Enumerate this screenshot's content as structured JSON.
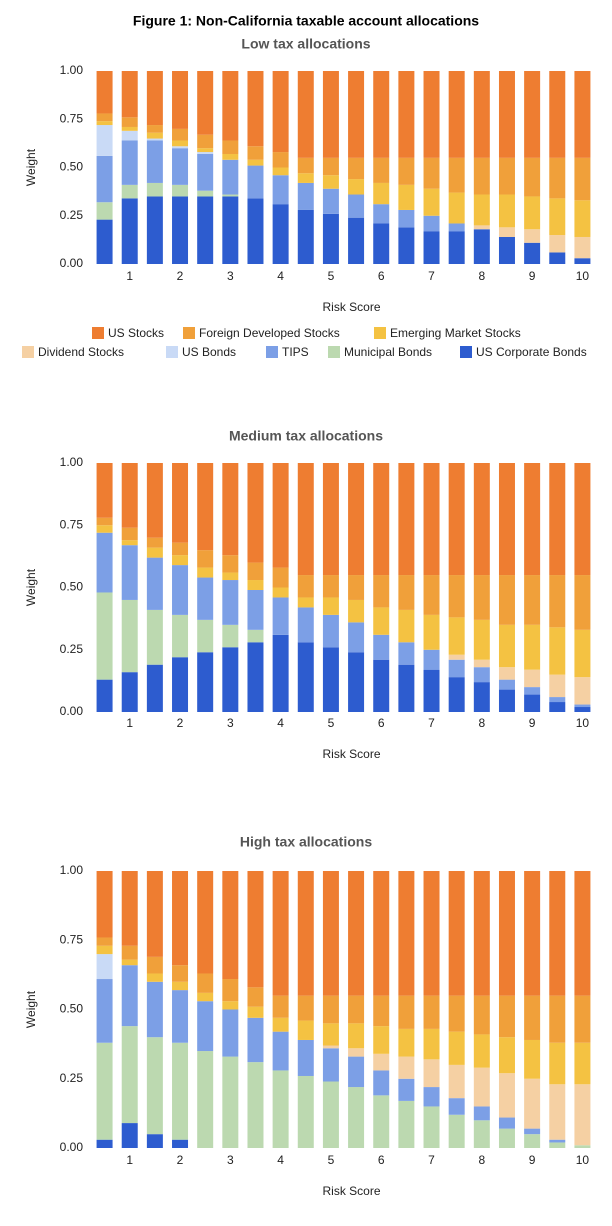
{
  "title": "Figure 1: Non-California taxable account allocations",
  "chart_data": [
    {
      "type": "bar",
      "stacked": true,
      "title": "Low tax allocations",
      "xlabel": "Risk Score",
      "ylabel": "Weight",
      "categories": [
        null,
        "1",
        null,
        "2",
        null,
        "3",
        null,
        "4",
        null,
        "5",
        null,
        "6",
        null,
        "7",
        null,
        "8",
        null,
        "9",
        null,
        "10"
      ],
      "ylim": [
        0,
        1
      ],
      "yticks": [
        {
          "value": 0,
          "label": "0.00"
        },
        {
          "value": 0.25,
          "label": "0.25"
        },
        {
          "value": 0.5,
          "label": "0.50"
        },
        {
          "value": 0.75,
          "label": "0.75"
        },
        {
          "value": 1,
          "label": "1.00"
        }
      ],
      "legend": "bottom",
      "series": [
        {
          "name": "US Corporate Bonds",
          "color": "#2d5ccf",
          "values": [
            0.23,
            0.34,
            0.35,
            0.35,
            0.35,
            0.35,
            0.34,
            0.31,
            0.28,
            0.26,
            0.24,
            0.21,
            0.19,
            0.17,
            0.17,
            0.18,
            0.14,
            0.11,
            0.06,
            0.03
          ]
        },
        {
          "name": "Municipal Bonds",
          "color": "#bcd9b0",
          "values": [
            0.09,
            0.07,
            0.07,
            0.06,
            0.03,
            0.01,
            0,
            0,
            0,
            0,
            0,
            0,
            0,
            0,
            0,
            0,
            0,
            0,
            0,
            0
          ]
        },
        {
          "name": "TIPS",
          "color": "#7c9fe6",
          "values": [
            0.24,
            0.23,
            0.22,
            0.19,
            0.19,
            0.18,
            0.17,
            0.15,
            0.14,
            0.13,
            0.12,
            0.1,
            0.09,
            0.08,
            0.04,
            0,
            0,
            0,
            0,
            0
          ]
        },
        {
          "name": "US Bonds",
          "color": "#c9daf6",
          "values": [
            0.16,
            0.05,
            0.01,
            0.01,
            0.01,
            0,
            0,
            0,
            0,
            0,
            0,
            0,
            0,
            0,
            0,
            0,
            0,
            0,
            0,
            0
          ]
        },
        {
          "name": "Dividend Stocks",
          "color": "#f5d0a3",
          "values": [
            0,
            0,
            0,
            0,
            0,
            0,
            0,
            0,
            0,
            0,
            0,
            0,
            0,
            0,
            0,
            0.02,
            0.05,
            0.07,
            0.09,
            0.11
          ]
        },
        {
          "name": "Emerging Market Stocks",
          "color": "#f4c242",
          "values": [
            0.02,
            0.02,
            0.03,
            0.03,
            0.02,
            0.03,
            0.03,
            0.04,
            0.05,
            0.07,
            0.08,
            0.11,
            0.13,
            0.14,
            0.16,
            0.16,
            0.17,
            0.17,
            0.19,
            0.19
          ]
        },
        {
          "name": "Foreign Developed Stocks",
          "color": "#f0a03a",
          "values": [
            0.04,
            0.05,
            0.04,
            0.06,
            0.07,
            0.07,
            0.07,
            0.08,
            0.08,
            0.09,
            0.11,
            0.13,
            0.14,
            0.16,
            0.18,
            0.19,
            0.19,
            0.2,
            0.21,
            0.22
          ]
        },
        {
          "name": "US Stocks",
          "color": "#ee7d31",
          "values": [
            0.22,
            0.24,
            0.28,
            0.3,
            0.33,
            0.36,
            0.39,
            0.42,
            0.45,
            0.45,
            0.45,
            0.45,
            0.45,
            0.45,
            0.45,
            0.45,
            0.45,
            0.45,
            0.45,
            0.45
          ]
        }
      ]
    },
    {
      "type": "bar",
      "stacked": true,
      "title": "Medium tax allocations",
      "xlabel": "Risk Score",
      "ylabel": "Weight",
      "categories": [
        null,
        "1",
        null,
        "2",
        null,
        "3",
        null,
        "4",
        null,
        "5",
        null,
        "6",
        null,
        "7",
        null,
        "8",
        null,
        "9",
        null,
        "10"
      ],
      "ylim": [
        0,
        1
      ],
      "yticks": [
        {
          "value": 0,
          "label": "0.00"
        },
        {
          "value": 0.25,
          "label": "0.25"
        },
        {
          "value": 0.5,
          "label": "0.50"
        },
        {
          "value": 0.75,
          "label": "0.75"
        },
        {
          "value": 1,
          "label": "1.00"
        }
      ],
      "series": [
        {
          "color": "#2d5ccf",
          "values": [
            0.13,
            0.16,
            0.19,
            0.22,
            0.24,
            0.26,
            0.28,
            0.31,
            0.28,
            0.26,
            0.24,
            0.21,
            0.19,
            0.17,
            0.14,
            0.12,
            0.09,
            0.07,
            0.04,
            0.02
          ]
        },
        {
          "color": "#bcd9b0",
          "values": [
            0.35,
            0.29,
            0.22,
            0.17,
            0.13,
            0.09,
            0.05,
            0,
            0,
            0,
            0,
            0,
            0,
            0,
            0,
            0,
            0,
            0,
            0,
            0
          ]
        },
        {
          "color": "#7c9fe6",
          "values": [
            0.24,
            0.22,
            0.21,
            0.2,
            0.17,
            0.18,
            0.16,
            0.15,
            0.14,
            0.13,
            0.12,
            0.1,
            0.09,
            0.08,
            0.07,
            0.06,
            0.04,
            0.03,
            0.02,
            0.01
          ]
        },
        {
          "color": "#c9daf6",
          "values": [
            0,
            0,
            0,
            0,
            0,
            0,
            0,
            0,
            0,
            0,
            0,
            0,
            0,
            0,
            0,
            0,
            0,
            0,
            0,
            0
          ]
        },
        {
          "color": "#f5d0a3",
          "values": [
            0,
            0,
            0,
            0,
            0,
            0,
            0,
            0,
            0,
            0,
            0,
            0,
            0,
            0,
            0.02,
            0.03,
            0.05,
            0.07,
            0.09,
            0.11
          ]
        },
        {
          "color": "#f4c242",
          "values": [
            0.03,
            0.02,
            0.04,
            0.04,
            0.04,
            0.03,
            0.04,
            0.04,
            0.04,
            0.07,
            0.09,
            0.11,
            0.13,
            0.14,
            0.15,
            0.16,
            0.17,
            0.18,
            0.19,
            0.19
          ]
        },
        {
          "color": "#f0a03a",
          "values": [
            0.03,
            0.05,
            0.04,
            0.05,
            0.07,
            0.07,
            0.07,
            0.08,
            0.09,
            0.09,
            0.1,
            0.13,
            0.14,
            0.16,
            0.17,
            0.18,
            0.2,
            0.2,
            0.21,
            0.22
          ]
        },
        {
          "color": "#ee7d31",
          "values": [
            0.22,
            0.26,
            0.3,
            0.32,
            0.35,
            0.37,
            0.4,
            0.42,
            0.45,
            0.45,
            0.45,
            0.45,
            0.45,
            0.45,
            0.45,
            0.45,
            0.45,
            0.45,
            0.45,
            0.45
          ]
        }
      ]
    },
    {
      "type": "bar",
      "stacked": true,
      "title": "High tax allocations",
      "xlabel": "Risk Score",
      "ylabel": "Weight",
      "categories": [
        null,
        "1",
        null,
        "2",
        null,
        "3",
        null,
        "4",
        null,
        "5",
        null,
        "6",
        null,
        "7",
        null,
        "8",
        null,
        "9",
        null,
        "10"
      ],
      "ylim": [
        0,
        1
      ],
      "yticks": [
        {
          "value": 0,
          "label": "0.00"
        },
        {
          "value": 0.25,
          "label": "0.25"
        },
        {
          "value": 0.5,
          "label": "0.50"
        },
        {
          "value": 0.75,
          "label": "0.75"
        },
        {
          "value": 1,
          "label": "1.00"
        }
      ],
      "series": [
        {
          "color": "#2d5ccf",
          "values": [
            0.03,
            0.09,
            0.05,
            0.03,
            0,
            0,
            0,
            0,
            0,
            0,
            0,
            0,
            0,
            0,
            0,
            0,
            0,
            0,
            0,
            0
          ]
        },
        {
          "color": "#bcd9b0",
          "values": [
            0.35,
            0.35,
            0.35,
            0.35,
            0.35,
            0.33,
            0.31,
            0.28,
            0.26,
            0.24,
            0.22,
            0.19,
            0.17,
            0.15,
            0.12,
            0.1,
            0.07,
            0.05,
            0.02,
            0.01
          ]
        },
        {
          "color": "#7c9fe6",
          "values": [
            0.23,
            0.22,
            0.2,
            0.19,
            0.18,
            0.17,
            0.16,
            0.14,
            0.13,
            0.12,
            0.11,
            0.09,
            0.08,
            0.07,
            0.06,
            0.05,
            0.04,
            0.02,
            0.01,
            0
          ]
        },
        {
          "color": "#c9daf6",
          "values": [
            0.09,
            0,
            0,
            0,
            0,
            0,
            0,
            0,
            0,
            0,
            0,
            0,
            0,
            0,
            0,
            0,
            0,
            0,
            0,
            0
          ]
        },
        {
          "color": "#f5d0a3",
          "values": [
            0,
            0,
            0,
            0,
            0,
            0,
            0,
            0,
            0,
            0.01,
            0.03,
            0.06,
            0.08,
            0.1,
            0.12,
            0.14,
            0.16,
            0.18,
            0.2,
            0.22
          ]
        },
        {
          "color": "#f4c242",
          "values": [
            0.03,
            0.02,
            0.03,
            0.03,
            0.03,
            0.03,
            0.04,
            0.05,
            0.07,
            0.08,
            0.09,
            0.1,
            0.1,
            0.11,
            0.12,
            0.12,
            0.13,
            0.14,
            0.15,
            0.15
          ]
        },
        {
          "color": "#f0a03a",
          "values": [
            0.03,
            0.05,
            0.06,
            0.06,
            0.07,
            0.08,
            0.07,
            0.08,
            0.09,
            0.1,
            0.1,
            0.11,
            0.12,
            0.12,
            0.13,
            0.14,
            0.15,
            0.16,
            0.17,
            0.17
          ]
        },
        {
          "color": "#ee7d31",
          "values": [
            0.24,
            0.27,
            0.31,
            0.34,
            0.37,
            0.39,
            0.42,
            0.45,
            0.45,
            0.45,
            0.45,
            0.45,
            0.45,
            0.45,
            0.45,
            0.45,
            0.45,
            0.45,
            0.45,
            0.45
          ]
        }
      ]
    }
  ]
}
